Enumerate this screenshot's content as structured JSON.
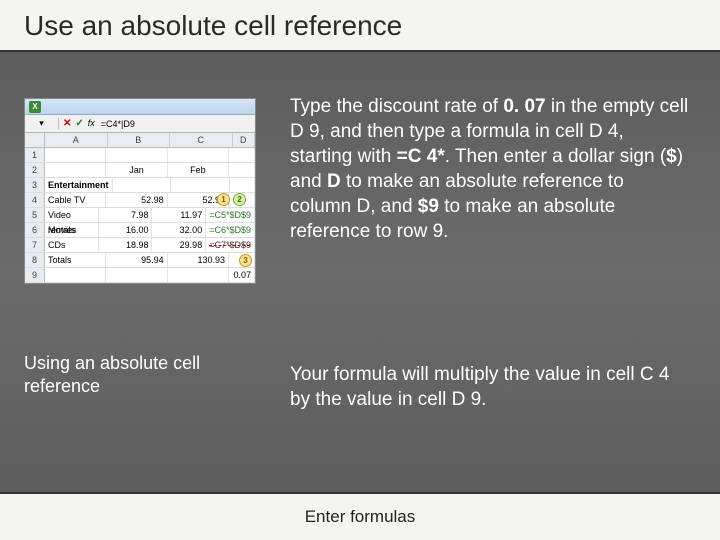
{
  "header": {
    "title": "Use an absolute cell reference"
  },
  "spreadsheet": {
    "formula_name": "",
    "formula_bar": "=C4*|D9",
    "col_headers": [
      "A",
      "B",
      "C",
      "D"
    ],
    "rows": [
      {
        "n": "1",
        "cells": [
          "",
          "",
          "",
          ""
        ]
      },
      {
        "n": "2",
        "cells": [
          "",
          "Jan",
          "Feb",
          ""
        ]
      },
      {
        "n": "3",
        "cells": [
          "Entertainment",
          "",
          "",
          ""
        ],
        "bold": true
      },
      {
        "n": "4",
        "cells": [
          "Cable TV",
          "52.98",
          "52.98",
          ""
        ],
        "badge": "1",
        "badge2": "2"
      },
      {
        "n": "5",
        "cells": [
          "Video rentals",
          "7.98",
          "11.97",
          "=C5*$D$9"
        ],
        "insert": true
      },
      {
        "n": "6",
        "cells": [
          "Movies",
          "16.00",
          "32.00",
          "=C6*$D$9"
        ],
        "insert": true
      },
      {
        "n": "7",
        "cells": [
          "CDs",
          "18.98",
          "29.98",
          "=C7*$D$9"
        ],
        "strike": true
      },
      {
        "n": "8",
        "cells": [
          "Totals",
          "95.94",
          "130.93",
          ""
        ]
      },
      {
        "n": "9",
        "cells": [
          "",
          "",
          "",
          "0.07"
        ],
        "badge3": "3"
      }
    ]
  },
  "caption": "Using an absolute cell reference",
  "paragraph1_parts": {
    "p1": "Type the discount rate of ",
    "b1": "0. 07",
    "p2": " in the empty cell D 9, and then type a formula in cell D 4, starting with ",
    "b2": "=C 4*",
    "p3": ". Then enter a dollar sign (",
    "b3": "$",
    "p4": ") and ",
    "b4": "D",
    "p5": " to make an absolute reference to column D, and ",
    "b5": "$9",
    "p6": " to make an absolute reference to row 9."
  },
  "paragraph2": "Your formula will multiply the value in cell C 4 by the value in cell D 9.",
  "footer": "Enter formulas",
  "colors": {
    "header_bg": "#f5f5f0",
    "body_bg": "#606060",
    "text_light": "#ffffff",
    "text_dark": "#2a2a2a"
  }
}
